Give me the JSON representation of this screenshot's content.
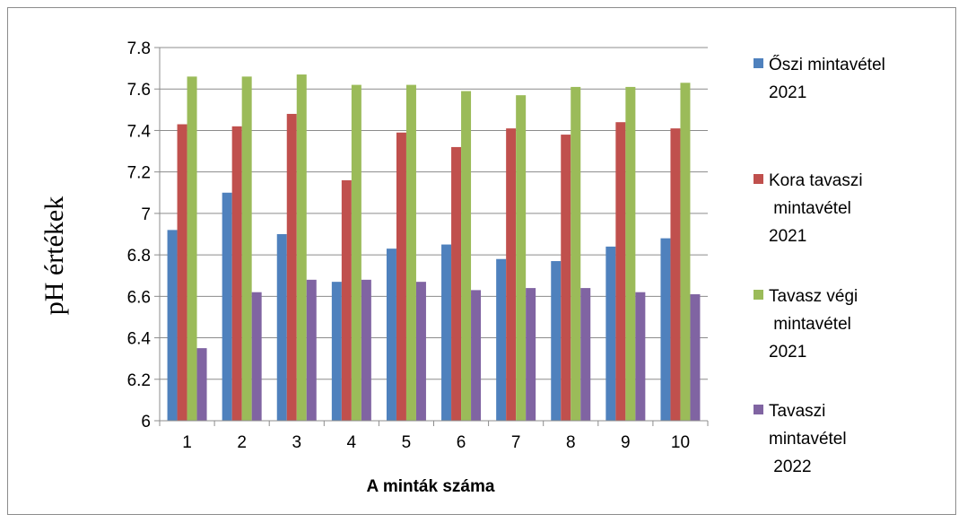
{
  "chart_data": {
    "type": "bar",
    "title": "",
    "xlabel": "A minták száma",
    "ylabel": "pH értékek",
    "categories": [
      "1",
      "2",
      "3",
      "4",
      "5",
      "6",
      "7",
      "8",
      "9",
      "10"
    ],
    "ylim": [
      6,
      7.8
    ],
    "yticks": [
      "6",
      "6.2",
      "6.4",
      "6.6",
      "6.8",
      "7",
      "7.2",
      "7.4",
      "7.6",
      "7.8"
    ],
    "grid": true,
    "legend_position": "right",
    "series": [
      {
        "name": "Őszi mintavétel 2021",
        "legend_lines": [
          "Őszi mintavétel",
          "2021"
        ],
        "color": "#4f81bd",
        "values": [
          6.92,
          7.1,
          6.9,
          6.67,
          6.83,
          6.85,
          6.78,
          6.77,
          6.84,
          6.88
        ]
      },
      {
        "name": "Kora tavaszi mintavétel 2021",
        "legend_lines": [
          "Kora tavaszi",
          " mintavétel",
          "2021"
        ],
        "color": "#c0504d",
        "values": [
          7.43,
          7.42,
          7.48,
          7.16,
          7.39,
          7.32,
          7.41,
          7.38,
          7.44,
          7.41
        ]
      },
      {
        "name": "Tavasz végi mintavétel 2021",
        "legend_lines": [
          "Tavasz végi",
          " mintavétel",
          "2021"
        ],
        "color": "#9bbb59",
        "values": [
          7.66,
          7.66,
          7.67,
          7.62,
          7.62,
          7.59,
          7.57,
          7.61,
          7.61,
          7.63
        ]
      },
      {
        "name": "Tavaszi mintavétel 2022",
        "legend_lines": [
          "Tavaszi",
          "mintavétel",
          " 2022"
        ],
        "color": "#8064a2",
        "values": [
          6.35,
          6.62,
          6.68,
          6.68,
          6.67,
          6.63,
          6.64,
          6.64,
          6.62,
          6.61
        ]
      }
    ]
  }
}
